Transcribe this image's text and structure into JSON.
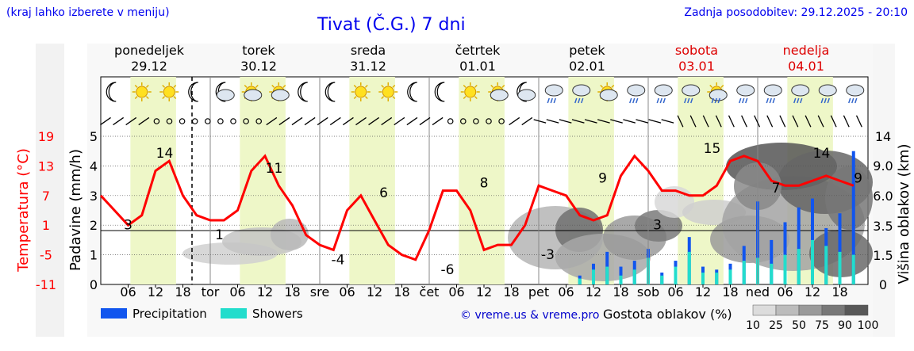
{
  "header": {
    "menu_hint": "(kraj lahko izberete v meniju)",
    "title": "Tivat (Č.G.) 7 dni",
    "updated": "Zadnja posodobitev: 29.12.2025 - 20:10"
  },
  "days": [
    {
      "name": "ponedeljek",
      "date": "29.12",
      "weekend": false
    },
    {
      "name": "torek",
      "date": "30.12",
      "weekend": false
    },
    {
      "name": "sreda",
      "date": "31.12",
      "weekend": false
    },
    {
      "name": "četrtek",
      "date": "01.01",
      "weekend": false
    },
    {
      "name": "petek",
      "date": "02.01",
      "weekend": false
    },
    {
      "name": "sobota",
      "date": "03.01",
      "weekend": true
    },
    {
      "name": "nedelja",
      "date": "04.01",
      "weekend": true
    }
  ],
  "colors": {
    "temperature": "#ff0000",
    "precipitation": "#1155ee",
    "showers": "#22ddcc",
    "daylight": "#eef7c8",
    "weekend_text": "#dd0000"
  },
  "legend": {
    "precipitation": "Precipitation",
    "showers": "Showers",
    "credit": "© vreme.us & vreme.pro",
    "cloud_label": "Gostota oblakov (%)",
    "cloud_levels": [
      "10",
      "25",
      "50",
      "75",
      "90",
      "100"
    ]
  },
  "chart_data": {
    "type": "line",
    "x_axis": {
      "day_marks": [
        "tor",
        "sre",
        "čet",
        "pet",
        "sob",
        "ned"
      ],
      "hour_ticks": [
        "06",
        "12",
        "18"
      ]
    },
    "y_left_precip": {
      "label": "Padavine (mm/h)",
      "ticks": [
        "0",
        "1",
        "2",
        "3",
        "4",
        "5"
      ],
      "range": [
        0,
        5
      ]
    },
    "y_left_temp": {
      "label": "Temperatura (°C)",
      "ticks": [
        "-11",
        "-5",
        "1",
        "7",
        "13",
        "19"
      ],
      "range": [
        -11,
        19
      ]
    },
    "y_right_cloud": {
      "label": "Višina oblakov (km)",
      "ticks": [
        "0",
        "1.5",
        "3.5",
        "6.0",
        "9.0",
        "14"
      ]
    },
    "temperature_labels": [
      "3",
      "14",
      "1",
      "11",
      "-4",
      "6",
      "-6",
      "8",
      "-3",
      "9",
      "3",
      "15",
      "7",
      "14",
      "9"
    ],
    "temperature_series": {
      "name": "Temperatura",
      "x_hours": [
        0,
        3,
        6,
        9,
        12,
        15,
        18,
        21,
        24,
        27,
        30,
        33,
        36,
        39,
        42,
        45,
        48,
        51,
        54,
        57,
        60,
        63,
        66,
        69,
        72,
        75,
        78,
        81,
        84,
        87,
        90,
        93,
        96,
        99,
        102,
        105,
        108,
        111,
        114,
        117,
        120,
        123,
        126,
        129,
        132,
        135,
        138,
        141,
        144,
        147,
        150,
        153,
        156,
        159,
        162,
        165
      ],
      "values": [
        7,
        4,
        1,
        3,
        12,
        14,
        7,
        3,
        2,
        2,
        4,
        12,
        15,
        9,
        5,
        -1,
        -3,
        -4,
        4,
        7,
        2,
        -3,
        -5,
        -6,
        0,
        8,
        8,
        4,
        -4,
        -3,
        -3,
        1,
        9,
        8,
        7,
        3,
        2,
        3,
        11,
        15,
        12,
        8,
        8,
        7,
        7,
        9,
        14,
        15,
        14,
        10,
        9,
        9,
        10,
        11,
        10,
        9
      ]
    },
    "precipitation_bars": [
      {
        "hour": 105,
        "precip": 0.3,
        "showers": 0.2
      },
      {
        "hour": 108,
        "precip": 0.7,
        "showers": 0.5
      },
      {
        "hour": 111,
        "precip": 1.1,
        "showers": 0.6
      },
      {
        "hour": 114,
        "precip": 0.6,
        "showers": 0.3
      },
      {
        "hour": 117,
        "precip": 0.8,
        "showers": 0.5
      },
      {
        "hour": 120,
        "precip": 1.2,
        "showers": 0.9
      },
      {
        "hour": 123,
        "precip": 0.4,
        "showers": 0.3
      },
      {
        "hour": 126,
        "precip": 0.8,
        "showers": 0.6
      },
      {
        "hour": 129,
        "precip": 1.6,
        "showers": 1.1
      },
      {
        "hour": 132,
        "precip": 0.6,
        "showers": 0.4
      },
      {
        "hour": 135,
        "precip": 0.5,
        "showers": 0.4
      },
      {
        "hour": 138,
        "precip": 0.7,
        "showers": 0.5
      },
      {
        "hour": 141,
        "precip": 1.3,
        "showers": 0.8
      },
      {
        "hour": 144,
        "precip": 2.8,
        "showers": 0.9
      },
      {
        "hour": 147,
        "precip": 1.5,
        "showers": 0.7
      },
      {
        "hour": 150,
        "precip": 2.1,
        "showers": 1.0
      },
      {
        "hour": 153,
        "precip": 2.6,
        "showers": 1.2
      },
      {
        "hour": 156,
        "precip": 2.9,
        "showers": 1.5
      },
      {
        "hour": 159,
        "precip": 1.9,
        "showers": 1.3
      },
      {
        "hour": 162,
        "precip": 2.4,
        "showers": 1.1
      },
      {
        "hour": 165,
        "precip": 4.5,
        "showers": 1.0
      }
    ]
  }
}
